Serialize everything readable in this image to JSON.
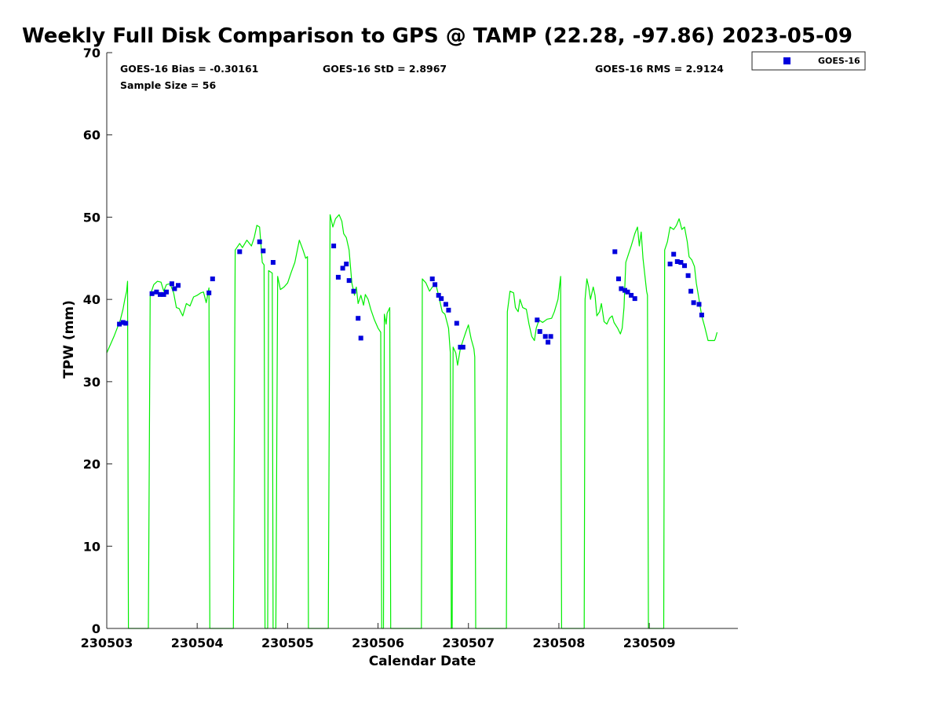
{
  "chart_data": {
    "type": "line+scatter",
    "title": "Weekly Full Disk Comparison to GPS @ TAMP (22.28, -97.86) 2023-05-09",
    "xlabel": "Calendar Date",
    "ylabel": "TPW (mm)",
    "xlim": [
      0,
      6.98
    ],
    "ylim": [
      0,
      70
    ],
    "yticks": [
      0,
      10,
      20,
      30,
      40,
      50,
      60,
      70
    ],
    "x_tick_labels": [
      "230503",
      "230504",
      "230505",
      "230506",
      "230507",
      "230508",
      "230509"
    ],
    "x_tick_values": [
      0,
      1,
      2,
      3,
      4,
      5,
      6
    ],
    "grid": false,
    "legend": {
      "placement": "top-right-outside",
      "entries": [
        "GOES-16"
      ]
    },
    "stats": {
      "bias": "GOES-16 Bias = -0.30161",
      "std": "GOES-16 StD = 2.8967",
      "rms": "GOES-16 RMS = 2.9124",
      "sample": "Sample Size = 56"
    },
    "gps_series": {
      "color": "#00ee00",
      "points": [
        [
          0,
          33.5
        ],
        [
          0.08,
          35.5
        ],
        [
          0.15,
          37.5
        ],
        [
          0.18,
          38.8
        ],
        [
          0.2,
          40
        ],
        [
          0.22,
          41
        ],
        [
          0.23,
          42.2
        ],
        [
          0.24,
          0
        ],
        [
          0.46,
          0
        ],
        [
          0.48,
          40.5
        ],
        [
          0.52,
          41.8
        ],
        [
          0.56,
          42.2
        ],
        [
          0.6,
          42.1
        ],
        [
          0.63,
          41
        ],
        [
          0.66,
          41.8
        ],
        [
          0.7,
          41.9
        ],
        [
          0.74,
          40.8
        ],
        [
          0.77,
          39
        ],
        [
          0.8,
          38.9
        ],
        [
          0.84,
          38
        ],
        [
          0.88,
          39.5
        ],
        [
          0.92,
          39.2
        ],
        [
          0.96,
          40.3
        ],
        [
          1,
          40.5
        ],
        [
          1.04,
          40.8
        ],
        [
          1.07,
          40.9
        ],
        [
          1.1,
          39.6
        ],
        [
          1.13,
          41.4
        ],
        [
          1.14,
          0
        ],
        [
          1.4,
          0
        ],
        [
          1.42,
          46
        ],
        [
          1.47,
          46.8
        ],
        [
          1.5,
          46.3
        ],
        [
          1.55,
          47.2
        ],
        [
          1.6,
          46.5
        ],
        [
          1.63,
          47.5
        ],
        [
          1.66,
          49
        ],
        [
          1.69,
          48.8
        ],
        [
          1.72,
          44.5
        ],
        [
          1.74,
          44.2
        ],
        [
          1.75,
          0
        ],
        [
          1.78,
          0
        ],
        [
          1.79,
          43.5
        ],
        [
          1.83,
          43.2
        ],
        [
          1.84,
          0
        ],
        [
          1.87,
          0
        ],
        [
          1.89,
          42.8
        ],
        [
          1.92,
          41.2
        ],
        [
          1.96,
          41.5
        ],
        [
          2,
          42
        ],
        [
          2.04,
          43.3
        ],
        [
          2.08,
          44.5
        ],
        [
          2.13,
          47.2
        ],
        [
          2.17,
          46
        ],
        [
          2.2,
          45
        ],
        [
          2.22,
          45.2
        ],
        [
          2.23,
          0
        ],
        [
          2.45,
          0
        ],
        [
          2.47,
          50.3
        ],
        [
          2.5,
          48.8
        ],
        [
          2.53,
          49.8
        ],
        [
          2.57,
          50.3
        ],
        [
          2.6,
          49.5
        ],
        [
          2.62,
          48
        ],
        [
          2.65,
          47.5
        ],
        [
          2.68,
          46
        ],
        [
          2.71,
          42
        ],
        [
          2.74,
          40.5
        ],
        [
          2.76,
          41.5
        ],
        [
          2.78,
          39.5
        ],
        [
          2.81,
          40.5
        ],
        [
          2.84,
          39.3
        ],
        [
          2.86,
          40.6
        ],
        [
          2.89,
          40
        ],
        [
          2.92,
          38.8
        ],
        [
          2.96,
          37.5
        ],
        [
          3,
          36.5
        ],
        [
          3.03,
          36
        ],
        [
          3.04,
          0
        ],
        [
          3.06,
          0
        ],
        [
          3.07,
          38.2
        ],
        [
          3.09,
          37
        ],
        [
          3.1,
          38.3
        ],
        [
          3.13,
          39
        ],
        [
          3.14,
          0
        ],
        [
          3.48,
          0
        ],
        [
          3.49,
          42.5
        ],
        [
          3.53,
          42
        ],
        [
          3.57,
          41
        ],
        [
          3.6,
          41.5
        ],
        [
          3.64,
          41.8
        ],
        [
          3.67,
          40.5
        ],
        [
          3.71,
          38.5
        ],
        [
          3.74,
          38.2
        ],
        [
          3.78,
          36.5
        ],
        [
          3.8,
          33.5
        ],
        [
          3.81,
          0
        ],
        [
          3.82,
          0
        ],
        [
          3.83,
          34.2
        ],
        [
          3.86,
          33.5
        ],
        [
          3.88,
          32
        ],
        [
          3.91,
          34
        ],
        [
          3.94,
          35
        ],
        [
          3.97,
          36
        ],
        [
          4,
          36.9
        ],
        [
          4.03,
          35.2
        ],
        [
          4.06,
          34
        ],
        [
          4.07,
          33
        ],
        [
          4.08,
          0
        ],
        [
          4.42,
          0
        ],
        [
          4.43,
          38.5
        ],
        [
          4.46,
          41
        ],
        [
          4.5,
          40.8
        ],
        [
          4.52,
          39
        ],
        [
          4.55,
          38.5
        ],
        [
          4.57,
          40
        ],
        [
          4.6,
          39
        ],
        [
          4.64,
          38.8
        ],
        [
          4.67,
          37
        ],
        [
          4.7,
          35.5
        ],
        [
          4.73,
          35
        ],
        [
          4.75,
          36.5
        ],
        [
          4.78,
          37.5
        ],
        [
          4.82,
          37.2
        ],
        [
          4.87,
          37.6
        ],
        [
          4.92,
          37.7
        ],
        [
          4.95,
          38.5
        ],
        [
          4.99,
          40
        ],
        [
          5.02,
          42.8
        ],
        [
          5.03,
          0
        ],
        [
          5.28,
          0
        ],
        [
          5.29,
          40
        ],
        [
          5.31,
          42.5
        ],
        [
          5.33,
          41.5
        ],
        [
          5.35,
          40
        ],
        [
          5.38,
          41.5
        ],
        [
          5.4,
          40.5
        ],
        [
          5.42,
          38
        ],
        [
          5.45,
          38.5
        ],
        [
          5.47,
          39.5
        ],
        [
          5.5,
          37.3
        ],
        [
          5.53,
          37
        ],
        [
          5.56,
          37.7
        ],
        [
          5.59,
          38
        ],
        [
          5.61,
          37.2
        ],
        [
          5.65,
          36.5
        ],
        [
          5.68,
          35.8
        ],
        [
          5.7,
          36.5
        ],
        [
          5.72,
          39
        ],
        [
          5.74,
          44.5
        ],
        [
          5.77,
          45.5
        ],
        [
          5.8,
          46.5
        ],
        [
          5.84,
          48
        ],
        [
          5.87,
          48.8
        ],
        [
          5.89,
          46.5
        ],
        [
          5.91,
          48.2
        ],
        [
          5.93,
          45
        ],
        [
          5.95,
          43
        ],
        [
          5.97,
          41
        ],
        [
          5.98,
          40.5
        ],
        [
          5.99,
          0
        ],
        [
          6.16,
          0
        ],
        [
          6.17,
          46
        ],
        [
          6.2,
          47
        ],
        [
          6.23,
          48.8
        ],
        [
          6.27,
          48.5
        ],
        [
          6.3,
          49
        ],
        [
          6.33,
          49.8
        ],
        [
          6.36,
          48.5
        ],
        [
          6.39,
          48.8
        ],
        [
          6.42,
          47
        ],
        [
          6.44,
          45.2
        ],
        [
          6.47,
          44.8
        ],
        [
          6.5,
          44
        ],
        [
          6.52,
          42
        ],
        [
          6.55,
          40
        ],
        [
          6.58,
          38
        ],
        [
          6.61,
          36.8
        ],
        [
          6.65,
          35
        ],
        [
          6.69,
          35
        ],
        [
          6.72,
          35
        ],
        [
          6.73,
          35.2
        ],
        [
          6.75,
          36
        ]
      ]
    },
    "series": [
      {
        "name": "GOES-16",
        "color": "#0000dd",
        "points": [
          [
            0.14,
            37
          ],
          [
            0.18,
            37.2
          ],
          [
            0.21,
            37.1
          ],
          [
            0.5,
            40.7
          ],
          [
            0.55,
            40.9
          ],
          [
            0.59,
            40.6
          ],
          [
            0.63,
            40.6
          ],
          [
            0.66,
            40.9
          ],
          [
            0.72,
            41.9
          ],
          [
            0.75,
            41.3
          ],
          [
            0.79,
            41.7
          ],
          [
            1.13,
            40.8
          ],
          [
            1.17,
            42.5
          ],
          [
            1.47,
            45.8
          ],
          [
            1.69,
            47
          ],
          [
            1.73,
            45.9
          ],
          [
            1.84,
            44.5
          ],
          [
            2.51,
            46.5
          ],
          [
            2.56,
            42.7
          ],
          [
            2.61,
            43.8
          ],
          [
            2.65,
            44.3
          ],
          [
            2.68,
            42.3
          ],
          [
            2.73,
            41
          ],
          [
            2.78,
            37.7
          ],
          [
            2.81,
            35.3
          ],
          [
            3.6,
            42.5
          ],
          [
            3.63,
            41.8
          ],
          [
            3.67,
            40.5
          ],
          [
            3.7,
            40.1
          ],
          [
            3.75,
            39.4
          ],
          [
            3.78,
            38.7
          ],
          [
            3.87,
            37.1
          ],
          [
            3.91,
            34.2
          ],
          [
            3.94,
            34.2
          ],
          [
            4.76,
            37.5
          ],
          [
            4.79,
            36.1
          ],
          [
            4.85,
            35.5
          ],
          [
            4.88,
            34.8
          ],
          [
            4.91,
            35.5
          ],
          [
            5.62,
            45.8
          ],
          [
            5.66,
            42.5
          ],
          [
            5.69,
            41.3
          ],
          [
            5.73,
            41.1
          ],
          [
            5.76,
            40.9
          ],
          [
            5.8,
            40.5
          ],
          [
            5.84,
            40.1
          ],
          [
            6.23,
            44.3
          ],
          [
            6.27,
            45.5
          ],
          [
            6.31,
            44.6
          ],
          [
            6.35,
            44.5
          ],
          [
            6.39,
            44.1
          ],
          [
            6.43,
            42.9
          ],
          [
            6.46,
            41
          ],
          [
            6.49,
            39.6
          ],
          [
            6.55,
            39.4
          ],
          [
            6.58,
            38.1
          ]
        ]
      }
    ]
  }
}
